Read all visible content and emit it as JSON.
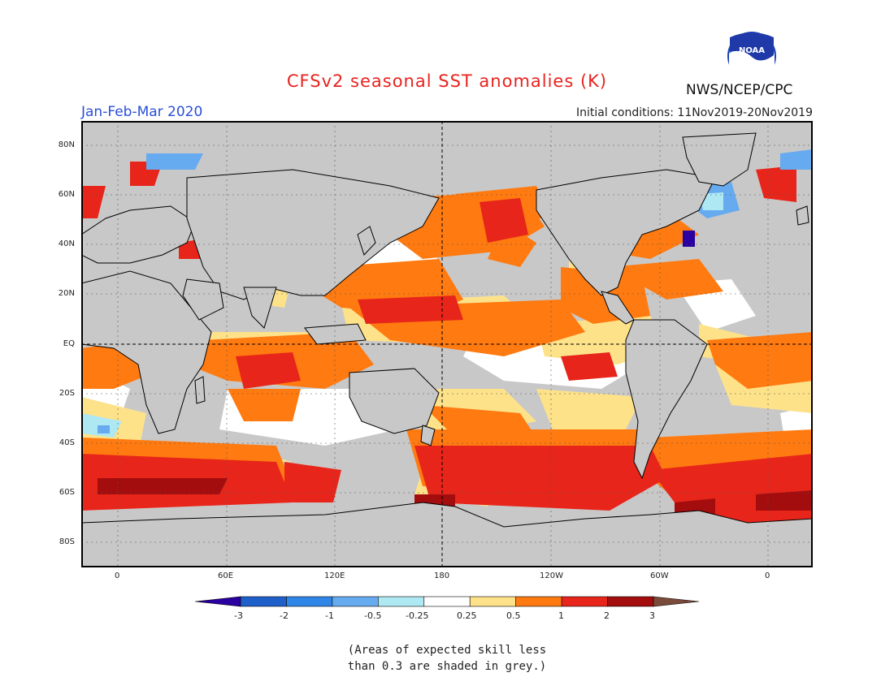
{
  "header": {
    "title": "CFSv2 seasonal SST anomalies (K)",
    "period": "Jan-Feb-Mar 2020",
    "initial_conditions": "Initial conditions: 11Nov2019-20Nov2019",
    "agency": "NWS/NCEP/CPC",
    "logo_text": "NOAA"
  },
  "map": {
    "lat_labels": [
      "80N",
      "60N",
      "40N",
      "20N",
      "EQ",
      "20S",
      "40S",
      "60S",
      "80S"
    ],
    "lon_labels": [
      "0",
      "60E",
      "120E",
      "180",
      "120W",
      "60W",
      "0"
    ],
    "colors": {
      "land": "#c8c8c8",
      "grey_skill": "#c8c8c8",
      "ocean_neutral": "#ffffff"
    }
  },
  "colorbar": {
    "tick_labels": [
      "-3",
      "-2",
      "-1",
      "-0.5",
      "-0.25",
      "0.25",
      "0.5",
      "1",
      "2",
      "3"
    ],
    "bins": [
      {
        "color": "#2a00a0"
      },
      {
        "color": "#1f5fc9"
      },
      {
        "color": "#2f86e6"
      },
      {
        "color": "#66aaf0"
      },
      {
        "color": "#aee8f3"
      },
      {
        "color": "#ffffff"
      },
      {
        "color": "#fde28a"
      },
      {
        "color": "#ff7a10"
      },
      {
        "color": "#e8251a"
      },
      {
        "color": "#a30d0d"
      },
      {
        "color": "#7a4a3a"
      }
    ]
  },
  "footnote": {
    "line1": "(Areas of expected skill less",
    "line2": "than 0.3 are shaded in grey.)"
  }
}
